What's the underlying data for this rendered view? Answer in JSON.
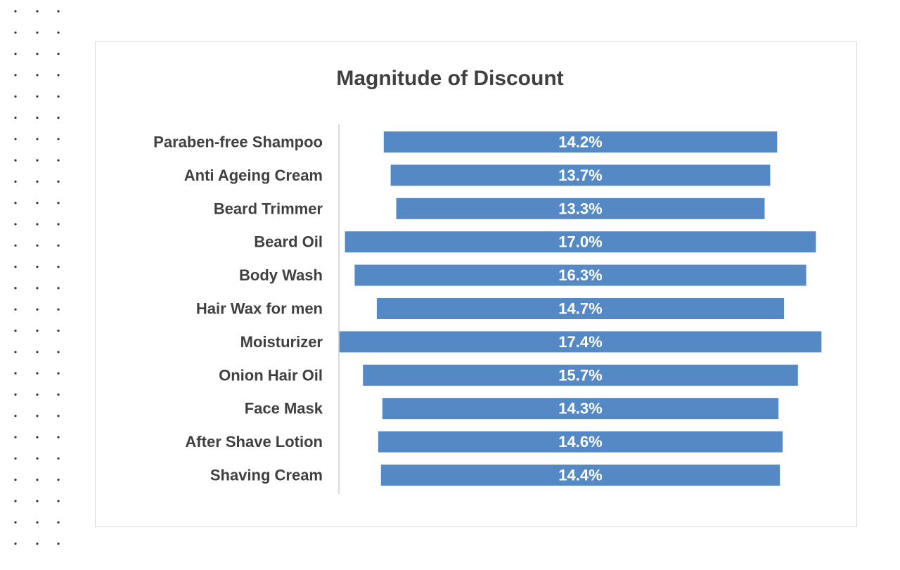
{
  "chart_data": {
    "type": "bar",
    "orientation": "horizontal-centered",
    "title": "Magnitude of Discount",
    "xlabel": "",
    "ylabel": "",
    "categories": [
      "Paraben-free Shampoo",
      "Anti Ageing Cream",
      "Beard Trimmer",
      "Beard Oil",
      "Body Wash",
      "Hair Wax for men",
      "Moisturizer",
      "Onion Hair Oil",
      "Face Mask",
      "After Shave Lotion",
      "Shaving Cream"
    ],
    "values": [
      14.2,
      13.7,
      13.3,
      17.0,
      16.3,
      14.7,
      17.4,
      15.7,
      14.3,
      14.6,
      14.4
    ],
    "data_labels": [
      "14.2%",
      "13.7%",
      "13.3%",
      "17.0%",
      "16.3%",
      "14.7%",
      "17.4%",
      "15.7%",
      "14.3%",
      "14.6%",
      "14.4%"
    ],
    "bar_color": "#5589c6",
    "label_color": "#ffffff",
    "category_color": "#404040",
    "grid": false,
    "legend": "none"
  }
}
